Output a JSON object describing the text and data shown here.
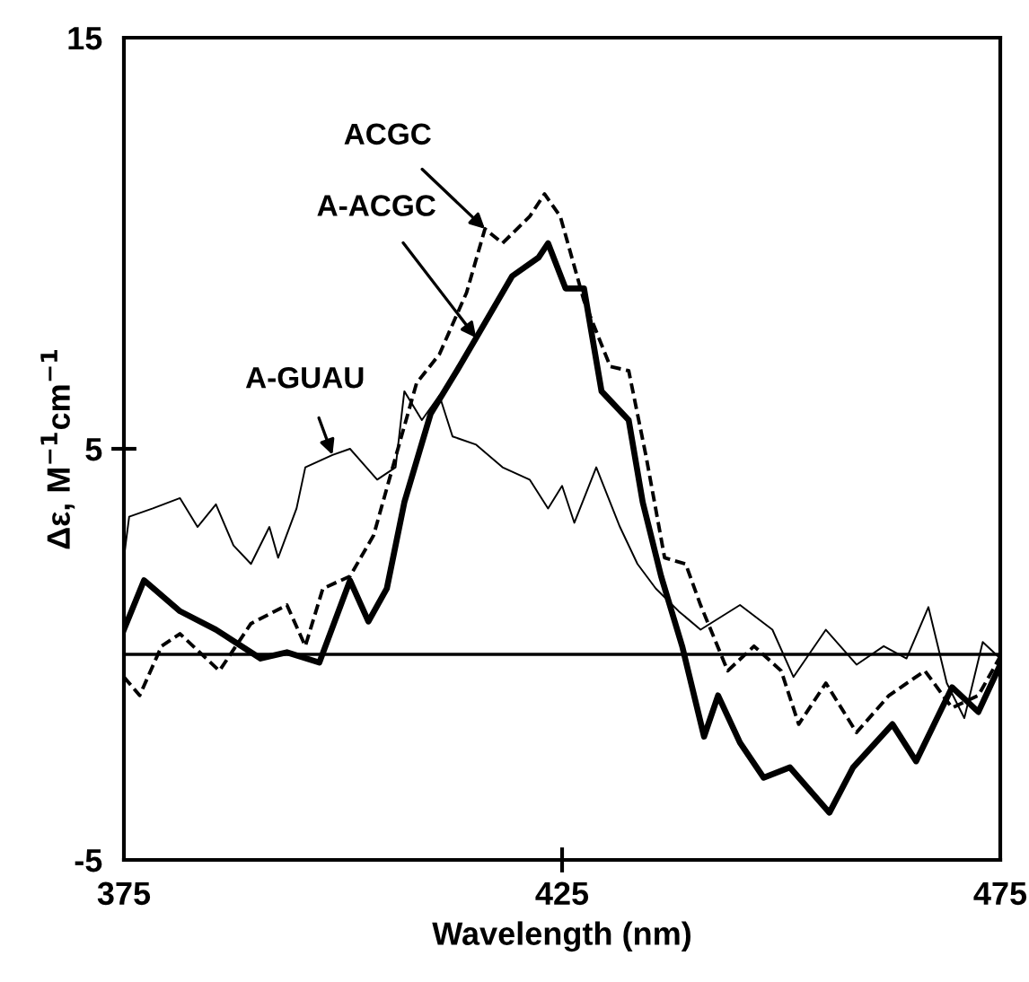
{
  "chart_data": {
    "type": "line",
    "xlabel": "Wavelength (nm)",
    "ylabel": "Δε, M$^{−1}$cm$^{−1}$",
    "xlim": [
      375,
      475
    ],
    "ylim": [
      -5,
      15
    ],
    "xticks": [
      375,
      425,
      475
    ],
    "yticks": [
      -5,
      5,
      15
    ],
    "grid": false,
    "legend": false,
    "marker": "none",
    "series": [
      {
        "color": "#000000",
        "line_style": "solid",
        "x": [
          375,
          377.3,
          381.4,
          385.5,
          390.6,
          393.6,
          397.3,
          400.8,
          402.9,
          405,
          407,
          410,
          413,
          415.2,
          419.3,
          422.3,
          423.4,
          425.4,
          427.5,
          429.5,
          432.6,
          434.2,
          436.3,
          438.7,
          441.2,
          442.8,
          445.3,
          448,
          451,
          455.5,
          458.2,
          462.7,
          465.4,
          469.5,
          472.5,
          475
        ],
        "values": [
          0.6,
          1.8,
          1.05,
          0.6,
          -0.1,
          0.05,
          -0.2,
          1.8,
          0.8,
          1.6,
          3.7,
          5.85,
          6.9,
          7.7,
          9.2,
          9.65,
          10.0,
          8.9,
          8.9,
          6.4,
          5.7,
          3.7,
          1.9,
          0.2,
          -2.0,
          -1.0,
          -2.15,
          -3.0,
          -2.75,
          -3.85,
          -2.75,
          -1.7,
          -2.6,
          -0.8,
          -1.4,
          -0.25
        ]
      },
      {
        "color": "#000000",
        "line_style": "dashed",
        "x": [
          375,
          376.8,
          379.3,
          381.4,
          385.9,
          389.5,
          393.6,
          395.7,
          397.7,
          400.8,
          403.5,
          406,
          408.4,
          411,
          414.1,
          416.2,
          418.2,
          421.3,
          423,
          424.8,
          427.5,
          430.5,
          432.6,
          434.6,
          436.7,
          439.1,
          440.8,
          443.9,
          446.9,
          450,
          452,
          455.1,
          458.6,
          462.3,
          466.4,
          469.5,
          472.5,
          475
        ],
        "values": [
          -0.55,
          -1.0,
          0.2,
          0.5,
          -0.4,
          0.75,
          1.2,
          0.2,
          1.6,
          1.9,
          2.9,
          4.8,
          6.6,
          7.3,
          8.8,
          10.35,
          10.0,
          10.65,
          11.2,
          10.65,
          8.6,
          7.0,
          6.9,
          4.8,
          2.35,
          2.2,
          1.2,
          -0.4,
          0.2,
          -0.4,
          -1.7,
          -0.7,
          -1.9,
          -1.0,
          -0.4,
          -1.3,
          -1.0,
          -0.05
        ]
      },
      {
        "color": "#000000",
        "line_style": "solid",
        "x": [
          375,
          375.6,
          378.3,
          381.4,
          383.4,
          385.5,
          387.5,
          389.5,
          391.6,
          392.6,
          394.7,
          395.7,
          398.8,
          400.8,
          403.9,
          406,
          407,
          409,
          411,
          412.5,
          415.2,
          418.2,
          421.3,
          423.4,
          425,
          426.4,
          428.9,
          431.6,
          433.6,
          435.7,
          438.3,
          440.8,
          445.3,
          449,
          451.4,
          455.1,
          458.6,
          461.7,
          464.3,
          466.8,
          468.9,
          470.9,
          473,
          475
        ],
        "values": [
          2.35,
          3.35,
          3.55,
          3.8,
          3.1,
          3.65,
          2.65,
          2.2,
          3.1,
          2.35,
          3.55,
          4.55,
          4.85,
          5.0,
          4.25,
          4.55,
          6.4,
          5.7,
          6.3,
          5.3,
          5.1,
          4.55,
          4.25,
          3.55,
          4.1,
          3.2,
          4.55,
          3.1,
          2.2,
          1.6,
          1.05,
          0.6,
          1.2,
          0.6,
          -0.55,
          0.6,
          -0.25,
          0.2,
          -0.1,
          1.15,
          -0.7,
          -1.55,
          0.3,
          -0.1
        ]
      }
    ],
    "ref_lines": [
      {
        "axis": "y",
        "value": 0,
        "color": "#000000",
        "line_style": "solid"
      }
    ],
    "annotations": [
      {
        "text": "ACGC",
        "x": 416.2,
        "y": 10.35
      },
      {
        "text": "A-ACGC",
        "x": 415.2,
        "y": 7.7
      },
      {
        "text": "A-GUAU",
        "x": 398.8,
        "y": 4.85
      }
    ]
  }
}
